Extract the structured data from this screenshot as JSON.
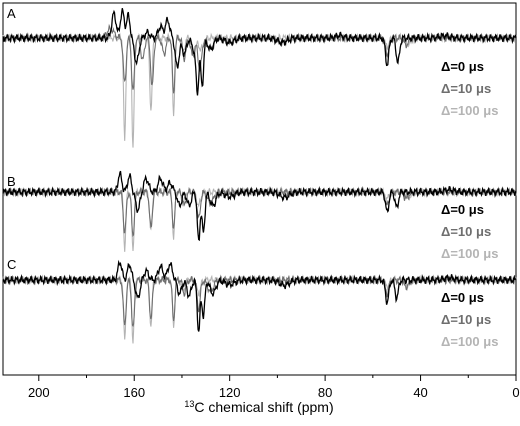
{
  "chart_data": {
    "type": "line",
    "xlabel_prefix": "13",
    "xlabel_main": "C chemical shift (ppm)",
    "xlim": [
      215,
      0
    ],
    "x_reversed": true,
    "x_ticks": [
      200,
      160,
      120,
      80,
      40,
      0
    ],
    "grid": false,
    "legend_placement": "right of each trace, below baseline",
    "colors": {
      "delta0": "#000000",
      "delta10": "#6e6e6e",
      "delta100": "#b4b4b4"
    },
    "legend_entries": [
      "Δ=0 μs",
      "Δ=10 μs",
      "Δ=100 μs"
    ],
    "panels": [
      {
        "label": "A",
        "series": [
          {
            "name": "Δ=0 μs",
            "peaks": [
              [
                168.5,
                0.55,
                0.9
              ],
              [
                165,
                0.6,
                0.8
              ],
              [
                162.5,
                0.5,
                0.7
              ],
              [
                159,
                -0.55,
                0.9
              ],
              [
                154.5,
                0.12,
                1.0
              ],
              [
                149,
                0.25,
                1.0
              ],
              [
                146,
                0.4,
                0.9
              ],
              [
                142,
                -0.65,
                0.8
              ],
              [
                139,
                -0.35,
                0.9
              ],
              [
                135,
                -0.25,
                0.9
              ],
              [
                133.5,
                -1.15,
                0.6
              ],
              [
                131.5,
                -1.05,
                0.6
              ],
              [
                128,
                -0.25,
                1.2
              ],
              [
                120,
                -0.1,
                2.0
              ],
              [
                98,
                -0.1,
                2.0
              ],
              [
                54,
                -0.6,
                0.7
              ],
              [
                49.5,
                -0.55,
                0.7
              ],
              [
                74,
                0.06,
                1.5
              ],
              [
                30,
                0.05,
                2.0
              ]
            ]
          },
          {
            "name": "Δ=10 μs",
            "peaks": [
              [
                170,
                0.2,
                1.5
              ],
              [
                164,
                -1.0,
                0.6
              ],
              [
                160.5,
                -1.2,
                0.6
              ],
              [
                156.5,
                -0.5,
                0.7
              ],
              [
                152.5,
                -1.1,
                0.6
              ],
              [
                147.5,
                -0.35,
                0.8
              ],
              [
                143.5,
                -1.25,
                0.5
              ],
              [
                139,
                -0.45,
                0.7
              ],
              [
                135.5,
                -0.4,
                0.8
              ],
              [
                132.5,
                -0.7,
                0.8
              ],
              [
                128,
                -0.25,
                1.2
              ],
              [
                120,
                -0.1,
                2.0
              ],
              [
                54,
                -0.35,
                0.8
              ],
              [
                46,
                -0.15,
                1.0
              ],
              [
                98,
                -0.1,
                2.0
              ]
            ]
          },
          {
            "name": "Δ=100 μs",
            "peaks": [
              [
                164,
                -2.3,
                0.45
              ],
              [
                160.5,
                -2.45,
                0.45
              ],
              [
                153,
                -1.6,
                0.5
              ],
              [
                143.5,
                -1.75,
                0.45
              ],
              [
                139.5,
                -0.3,
                0.7
              ],
              [
                135,
                -0.3,
                0.8
              ],
              [
                132,
                -0.25,
                1.0
              ],
              [
                54,
                -0.2,
                0.8
              ],
              [
                45,
                -0.15,
                1.0
              ]
            ]
          }
        ]
      },
      {
        "label": "B",
        "series": [
          {
            "name": "Δ=0 μs",
            "peaks": [
              [
                166,
                0.4,
                0.8
              ],
              [
                162,
                0.35,
                0.8
              ],
              [
                158.5,
                -0.4,
                0.9
              ],
              [
                155,
                0.3,
                1.0
              ],
              [
                149,
                0.3,
                1.0
              ],
              [
                145,
                0.2,
                1.0
              ],
              [
                141,
                -0.3,
                0.9
              ],
              [
                137,
                -0.3,
                0.9
              ],
              [
                133,
                -1.1,
                0.6
              ],
              [
                131,
                -0.9,
                0.6
              ],
              [
                127,
                -0.3,
                1.2
              ],
              [
                120,
                -0.1,
                2.0
              ],
              [
                97,
                -0.12,
                2.0
              ],
              [
                54,
                -0.45,
                0.7
              ],
              [
                50,
                -0.35,
                0.7
              ],
              [
                28,
                0.05,
                2.0
              ]
            ]
          },
          {
            "name": "Δ=10 μs",
            "peaks": [
              [
                164,
                -0.9,
                0.6
              ],
              [
                160.5,
                -0.95,
                0.6
              ],
              [
                153,
                -0.8,
                0.6
              ],
              [
                143.5,
                -0.85,
                0.5
              ],
              [
                139,
                -0.3,
                0.7
              ],
              [
                133,
                -0.6,
                0.7
              ],
              [
                128,
                -0.25,
                1.2
              ],
              [
                54,
                -0.3,
                0.8
              ],
              [
                46,
                -0.15,
                1.0
              ]
            ]
          },
          {
            "name": "Δ=100 μs",
            "peaks": [
              [
                164,
                -1.25,
                0.45
              ],
              [
                160.5,
                -1.3,
                0.45
              ],
              [
                153,
                -0.9,
                0.5
              ],
              [
                143.5,
                -1.0,
                0.45
              ],
              [
                139.5,
                -0.25,
                0.7
              ],
              [
                133,
                -0.3,
                0.8
              ],
              [
                54,
                -0.15,
                0.8
              ],
              [
                45,
                -0.12,
                1.0
              ]
            ]
          }
        ]
      },
      {
        "label": "C",
        "series": [
          {
            "name": "Δ=0 μs",
            "peaks": [
              [
                166,
                0.4,
                0.8
              ],
              [
                162,
                0.35,
                0.8
              ],
              [
                158.5,
                -0.4,
                0.9
              ],
              [
                155,
                0.2,
                1.0
              ],
              [
                149,
                0.3,
                1.0
              ],
              [
                145,
                0.35,
                1.0
              ],
              [
                141,
                -0.3,
                0.9
              ],
              [
                137,
                -0.35,
                0.9
              ],
              [
                133,
                -1.15,
                0.6
              ],
              [
                131,
                -0.8,
                0.6
              ],
              [
                127,
                -0.3,
                1.2
              ],
              [
                120,
                -0.1,
                2.0
              ],
              [
                97,
                -0.12,
                2.0
              ],
              [
                54,
                -0.5,
                0.7
              ],
              [
                50,
                -0.4,
                0.7
              ],
              [
                28,
                0.05,
                2.0
              ]
            ]
          },
          {
            "name": "Δ=10 μs",
            "peaks": [
              [
                164,
                -1.0,
                0.6
              ],
              [
                160.5,
                -1.1,
                0.6
              ],
              [
                153,
                -0.85,
                0.6
              ],
              [
                143.5,
                -0.9,
                0.5
              ],
              [
                139,
                -0.3,
                0.7
              ],
              [
                133,
                -0.65,
                0.7
              ],
              [
                128,
                -0.25,
                1.2
              ],
              [
                54,
                -0.3,
                0.8
              ],
              [
                46,
                -0.15,
                1.0
              ]
            ]
          },
          {
            "name": "Δ=100 μs",
            "peaks": [
              [
                164,
                -1.35,
                0.45
              ],
              [
                160.5,
                -1.4,
                0.45
              ],
              [
                153,
                -1.0,
                0.5
              ],
              [
                143.5,
                -1.05,
                0.45
              ],
              [
                139.5,
                -0.25,
                0.7
              ],
              [
                133,
                -0.3,
                0.8
              ],
              [
                54,
                -0.15,
                0.8
              ],
              [
                45,
                -0.12,
                1.0
              ]
            ]
          }
        ]
      }
    ]
  }
}
